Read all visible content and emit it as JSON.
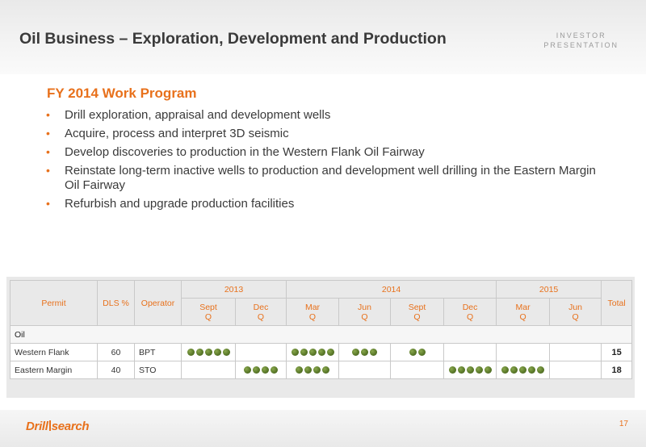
{
  "header": {
    "title": "Oil Business – Exploration, Development and Production",
    "tag_line1": "INVESTOR",
    "tag_line2": "PRESENTATION"
  },
  "program": {
    "title": "FY 2014 Work Program",
    "bullets": [
      "Drill exploration, appraisal and development wells",
      "Acquire, process and interpret 3D seismic",
      "Develop discoveries to production in the Western Flank Oil Fairway",
      "Reinstate long-term inactive wells to production and development well drilling in the Eastern Margin Oil Fairway",
      "Refurbish and upgrade production facilities"
    ]
  },
  "table": {
    "col_permit": "Permit",
    "col_dls": "DLS %",
    "col_operator": "Operator",
    "col_total": "Total",
    "years": [
      "2013",
      "2014",
      "2015"
    ],
    "quarters": [
      {
        "name": "Sept",
        "q": "Q"
      },
      {
        "name": "Dec",
        "q": "Q"
      },
      {
        "name": "Mar",
        "q": "Q"
      },
      {
        "name": "Jun",
        "q": "Q"
      },
      {
        "name": "Sept",
        "q": "Q"
      },
      {
        "name": "Dec",
        "q": "Q"
      },
      {
        "name": "Mar",
        "q": "Q"
      },
      {
        "name": "Jun",
        "q": "Q"
      }
    ],
    "section": "Oil",
    "rows": [
      {
        "permit": "Western Flank",
        "dls": "60",
        "operator": "BPT",
        "wells": [
          5,
          0,
          5,
          3,
          2,
          0,
          0,
          0
        ],
        "total": "15"
      },
      {
        "permit": "Eastern Margin",
        "dls": "40",
        "operator": "STO",
        "wells": [
          0,
          4,
          4,
          0,
          0,
          5,
          5,
          0
        ],
        "total": "18"
      }
    ],
    "well_color": "#5b7a2a",
    "accent_color": "#e8711c"
  },
  "footer": {
    "logo_part1": "Drill",
    "logo_part2": "search",
    "page_number": "17"
  }
}
